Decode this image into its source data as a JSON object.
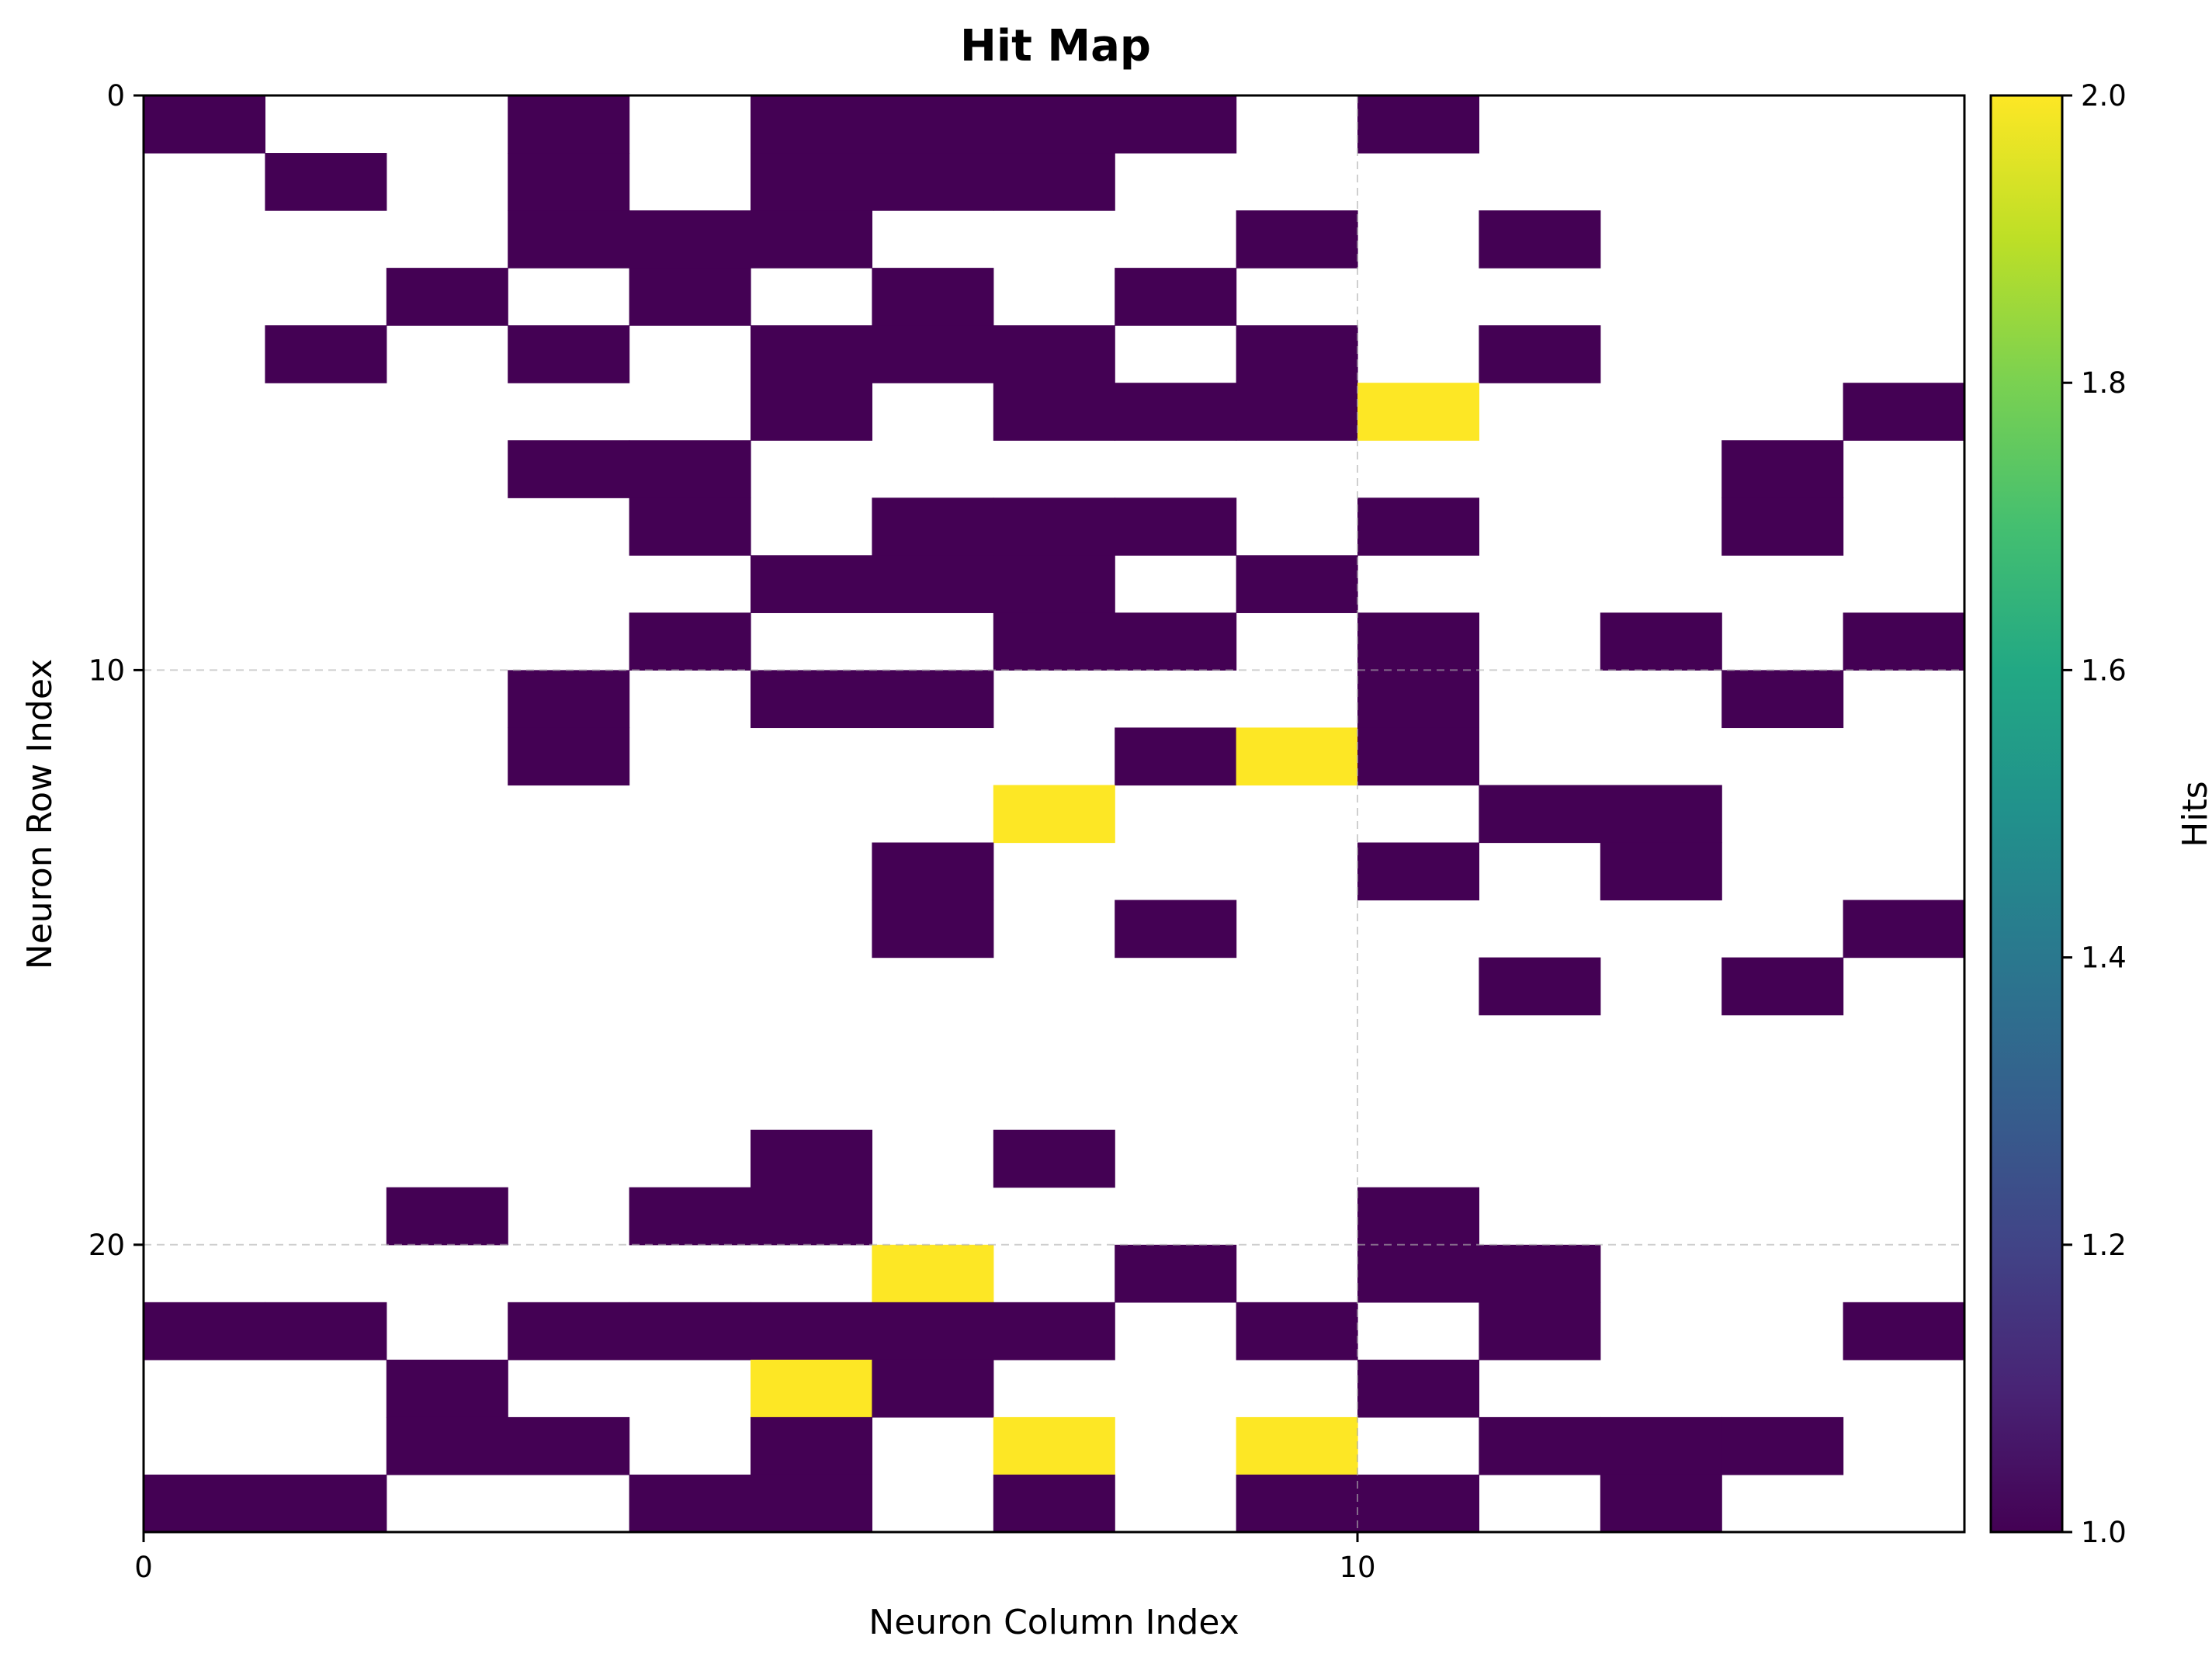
{
  "chart_data": {
    "type": "heatmap",
    "title": "Hit Map",
    "xlabel": "Neuron Column Index",
    "ylabel": "Neuron Row Index",
    "n_cols": 15,
    "n_rows": 25,
    "xlim": [
      0,
      15
    ],
    "ylim": [
      25,
      0
    ],
    "x_ticks": [
      0,
      10
    ],
    "x_tick_labels": [
      "0",
      "10"
    ],
    "y_ticks": [
      0,
      10,
      20
    ],
    "y_tick_labels": [
      "0",
      "10",
      "20"
    ],
    "grid": true,
    "colormap": "viridis",
    "empty_color": "#ffffff",
    "colorbar": {
      "label": "Hits",
      "min": 1.0,
      "max": 2.0,
      "ticks": [
        1.0,
        1.2,
        1.4,
        1.6,
        1.8,
        2.0
      ],
      "tick_labels": [
        "1.0",
        "1.2",
        "1.4",
        "1.6",
        "1.8",
        "2.0"
      ]
    },
    "cells": [
      [
        1,
        0,
        0,
        1,
        0,
        1,
        1,
        1,
        1,
        0,
        1,
        0,
        0,
        0,
        0
      ],
      [
        0,
        1,
        0,
        1,
        0,
        1,
        1,
        1,
        0,
        0,
        0,
        0,
        0,
        0,
        0
      ],
      [
        0,
        0,
        0,
        1,
        1,
        1,
        0,
        0,
        0,
        1,
        0,
        1,
        0,
        0,
        0
      ],
      [
        0,
        0,
        1,
        0,
        1,
        0,
        1,
        0,
        1,
        0,
        0,
        0,
        0,
        0,
        0
      ],
      [
        0,
        1,
        0,
        1,
        0,
        1,
        1,
        1,
        0,
        1,
        0,
        1,
        0,
        0,
        0
      ],
      [
        0,
        0,
        0,
        0,
        0,
        1,
        0,
        1,
        1,
        1,
        2,
        0,
        0,
        0,
        1
      ],
      [
        0,
        0,
        0,
        1,
        1,
        0,
        0,
        0,
        0,
        0,
        0,
        0,
        0,
        1,
        0
      ],
      [
        0,
        0,
        0,
        0,
        1,
        0,
        1,
        1,
        1,
        0,
        1,
        0,
        0,
        1,
        0
      ],
      [
        0,
        0,
        0,
        0,
        0,
        1,
        1,
        1,
        0,
        1,
        0,
        0,
        0,
        0,
        0
      ],
      [
        0,
        0,
        0,
        0,
        1,
        0,
        0,
        1,
        1,
        0,
        1,
        0,
        1,
        0,
        1
      ],
      [
        0,
        0,
        0,
        1,
        0,
        1,
        1,
        0,
        0,
        0,
        1,
        0,
        0,
        1,
        0
      ],
      [
        0,
        0,
        0,
        1,
        0,
        0,
        0,
        0,
        1,
        2,
        1,
        0,
        0,
        0,
        0
      ],
      [
        0,
        0,
        0,
        0,
        0,
        0,
        0,
        2,
        0,
        0,
        0,
        1,
        1,
        0,
        0
      ],
      [
        0,
        0,
        0,
        0,
        0,
        0,
        1,
        0,
        0,
        0,
        1,
        0,
        1,
        0,
        0
      ],
      [
        0,
        0,
        0,
        0,
        0,
        0,
        1,
        0,
        1,
        0,
        0,
        0,
        0,
        0,
        1
      ],
      [
        0,
        0,
        0,
        0,
        0,
        0,
        0,
        0,
        0,
        0,
        0,
        1,
        0,
        1,
        0
      ],
      [
        0,
        0,
        0,
        0,
        0,
        0,
        0,
        0,
        0,
        0,
        0,
        0,
        0,
        0,
        0
      ],
      [
        0,
        0,
        0,
        0,
        0,
        0,
        0,
        0,
        0,
        0,
        0,
        0,
        0,
        0,
        0
      ],
      [
        0,
        0,
        0,
        0,
        0,
        1,
        0,
        1,
        0,
        0,
        0,
        0,
        0,
        0,
        0
      ],
      [
        0,
        0,
        1,
        0,
        1,
        1,
        0,
        0,
        0,
        0,
        1,
        0,
        0,
        0,
        0
      ],
      [
        0,
        0,
        0,
        0,
        0,
        0,
        2,
        0,
        1,
        0,
        1,
        1,
        0,
        0,
        0
      ],
      [
        1,
        1,
        0,
        1,
        1,
        1,
        1,
        1,
        0,
        1,
        0,
        1,
        0,
        0,
        1
      ],
      [
        0,
        0,
        1,
        0,
        0,
        2,
        1,
        0,
        0,
        0,
        1,
        0,
        0,
        0,
        0
      ],
      [
        0,
        0,
        1,
        1,
        0,
        1,
        0,
        2,
        0,
        2,
        0,
        1,
        1,
        1,
        0
      ],
      [
        1,
        1,
        0,
        0,
        1,
        1,
        0,
        1,
        0,
        1,
        1,
        0,
        1,
        0,
        0
      ]
    ],
    "colors": {
      "low": "#440154",
      "high": "#fde725"
    }
  }
}
